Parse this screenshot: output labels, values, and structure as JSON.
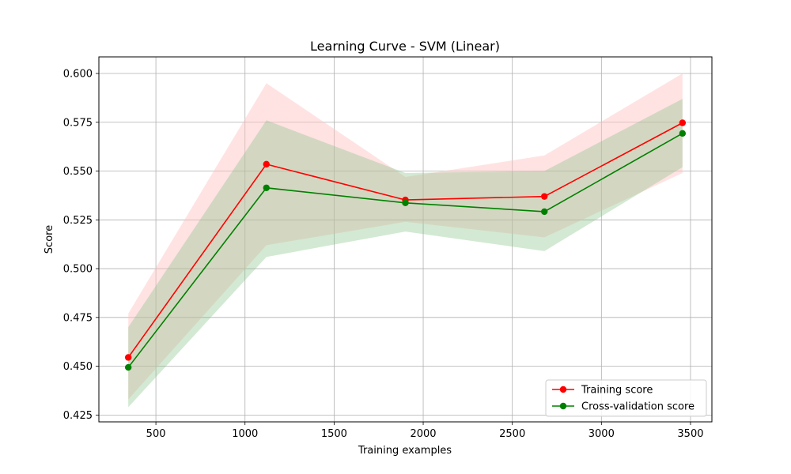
{
  "chart_data": {
    "type": "line",
    "title": "Learning Curve - SVM (Linear)",
    "xlabel": "Training examples",
    "ylabel": "Score",
    "xlim": [
      180,
      3620
    ],
    "ylim": [
      0.4215,
      0.6085
    ],
    "xticks": [
      500,
      1000,
      1500,
      2000,
      2500,
      3000,
      3500
    ],
    "xtick_labels": [
      "500",
      "1000",
      "1500",
      "2000",
      "2500",
      "3000",
      "3500"
    ],
    "yticks": [
      0.425,
      0.45,
      0.475,
      0.5,
      0.525,
      0.55,
      0.575,
      0.6
    ],
    "ytick_labels": [
      "0.425",
      "0.450",
      "0.475",
      "0.500",
      "0.525",
      "0.550",
      "0.575",
      "0.600"
    ],
    "grid": true,
    "legend_position": "lower-right",
    "x": [
      345,
      1120,
      1900,
      2680,
      3455
    ],
    "series": [
      {
        "name": "Training score",
        "color": "#ff0000",
        "band_color": "#ffc0c0",
        "values": [
          0.4545,
          0.5535,
          0.5352,
          0.537,
          0.5747
        ],
        "lower": [
          0.433,
          0.512,
          0.524,
          0.516,
          0.549
        ],
        "upper": [
          0.477,
          0.595,
          0.547,
          0.558,
          0.6
        ]
      },
      {
        "name": "Cross-validation score",
        "color": "#008000",
        "band_color": "#80c080",
        "values": [
          0.4494,
          0.5414,
          0.5337,
          0.5292,
          0.5693
        ],
        "lower": [
          0.429,
          0.506,
          0.519,
          0.509,
          0.552
        ],
        "upper": [
          0.47,
          0.576,
          0.549,
          0.55,
          0.587
        ]
      }
    ]
  }
}
